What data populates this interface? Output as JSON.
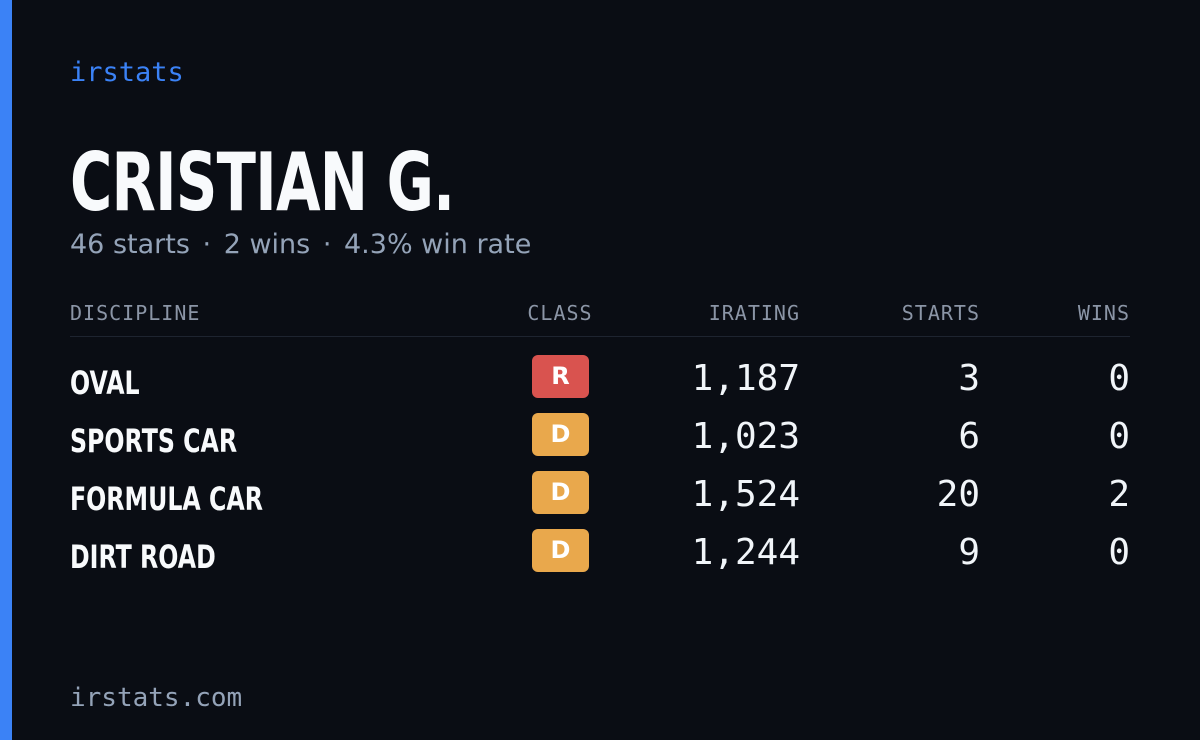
{
  "brand": "irstats",
  "driver": {
    "name": "CRISTIAN G.",
    "starts_text": "46 starts",
    "wins_text": "2 wins",
    "win_rate_text": "4.3% win rate",
    "separator": "·"
  },
  "table": {
    "headers": {
      "discipline": "DISCIPLINE",
      "class": "CLASS",
      "irating": "IRATING",
      "starts": "STARTS",
      "wins": "WINS"
    },
    "rows": [
      {
        "discipline": "OVAL",
        "class": "R",
        "class_color": "#d9534f",
        "irating": "1,187",
        "starts": "3",
        "wins": "0"
      },
      {
        "discipline": "SPORTS CAR",
        "class": "D",
        "class_color": "#e9a84c",
        "irating": "1,023",
        "starts": "6",
        "wins": "0"
      },
      {
        "discipline": "FORMULA CAR",
        "class": "D",
        "class_color": "#e9a84c",
        "irating": "1,524",
        "starts": "20",
        "wins": "2"
      },
      {
        "discipline": "DIRT ROAD",
        "class": "D",
        "class_color": "#e9a84c",
        "irating": "1,244",
        "starts": "9",
        "wins": "0"
      }
    ]
  },
  "footer": "irstats.com",
  "colors": {
    "accent": "#3b82f6",
    "background": "#0a0d14"
  }
}
